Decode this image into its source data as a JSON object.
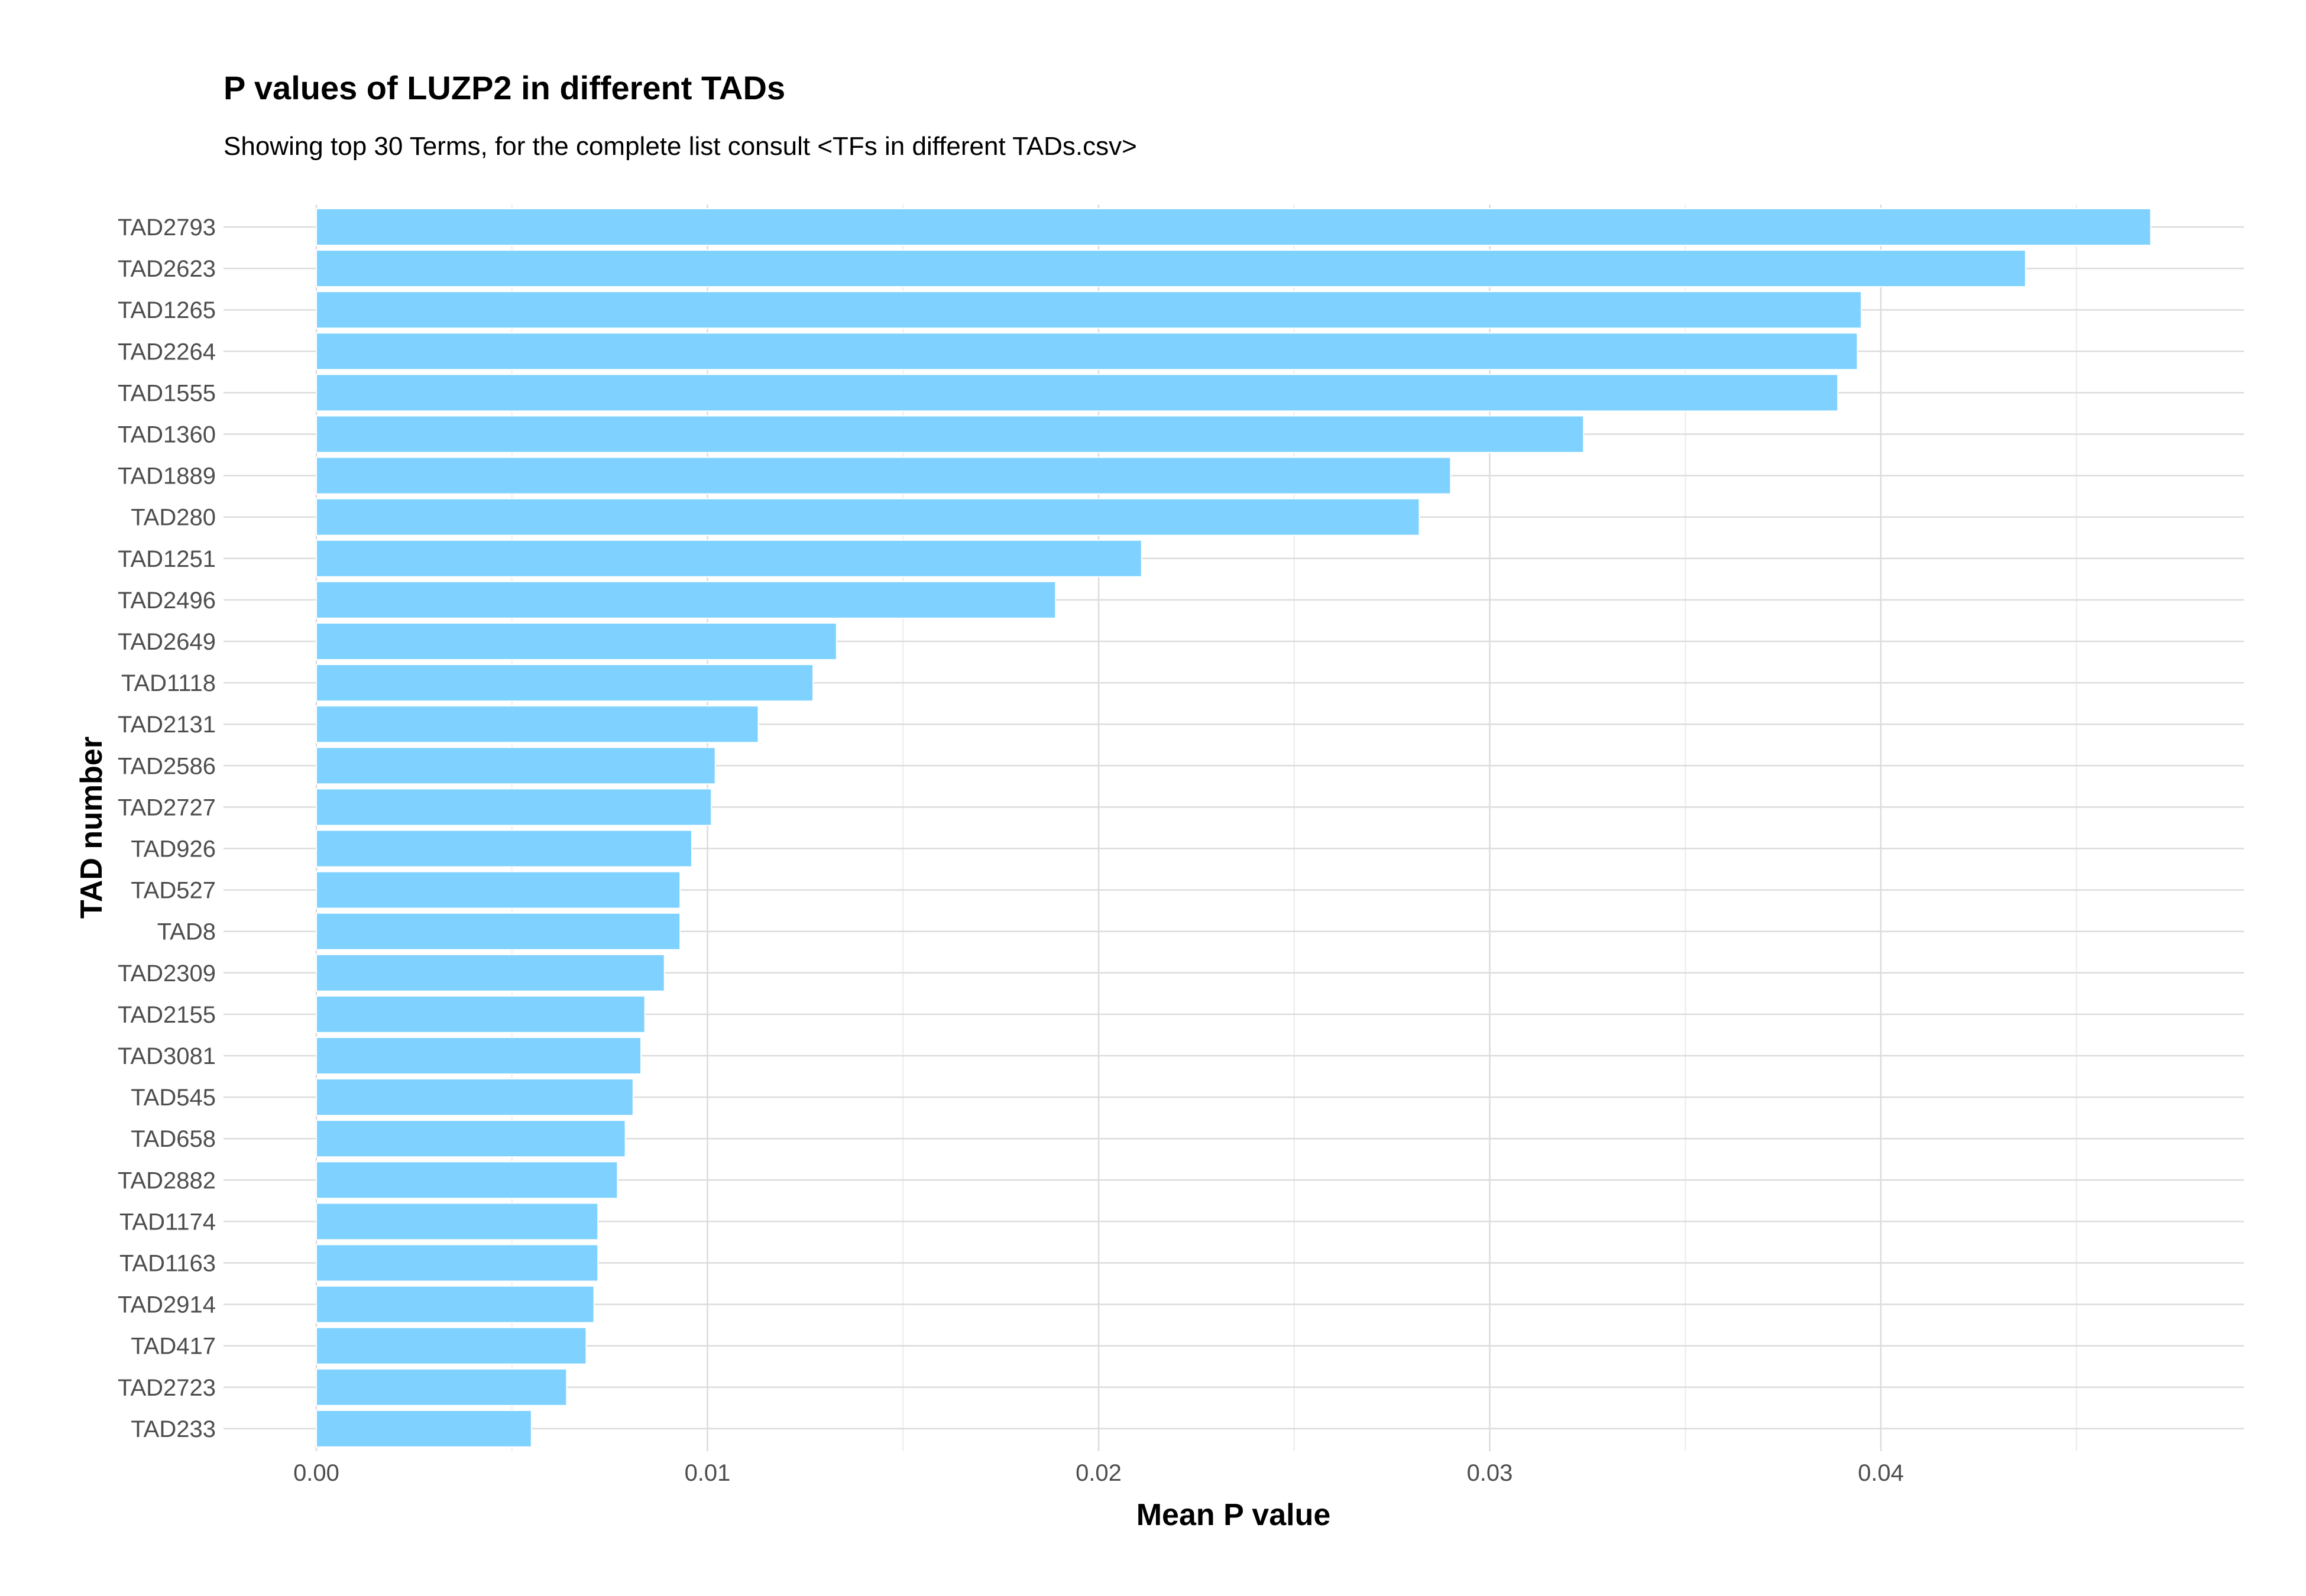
{
  "chart_data": {
    "type": "bar",
    "orientation": "horizontal",
    "title": "P values of LUZP2 in different TADs",
    "subtitle": "Showing top 30 Terms, for the complete list consult <TFs in different TADs.csv>",
    "xlabel": "Mean P value",
    "ylabel": "TAD number",
    "xlim": [
      -0.0024,
      0.0493
    ],
    "x_ticks": [
      "0.00",
      "0.01",
      "0.02",
      "0.03",
      "0.04"
    ],
    "x_tick_values": [
      0.0,
      0.01,
      0.02,
      0.03,
      0.04
    ],
    "grid": true,
    "bar_color": "#7fd2ff",
    "categories": [
      "TAD2793",
      "TAD2623",
      "TAD1265",
      "TAD2264",
      "TAD1555",
      "TAD1360",
      "TAD1889",
      "TAD280",
      "TAD1251",
      "TAD2496",
      "TAD2649",
      "TAD1118",
      "TAD2131",
      "TAD2586",
      "TAD2727",
      "TAD926",
      "TAD527",
      "TAD8",
      "TAD2309",
      "TAD2155",
      "TAD3081",
      "TAD545",
      "TAD658",
      "TAD2882",
      "TAD1174",
      "TAD1163",
      "TAD2914",
      "TAD417",
      "TAD2723",
      "TAD233"
    ],
    "values": [
      0.0469,
      0.0437,
      0.0395,
      0.0394,
      0.0389,
      0.0324,
      0.029,
      0.0282,
      0.0211,
      0.0189,
      0.0133,
      0.0127,
      0.0113,
      0.0102,
      0.0101,
      0.0096,
      0.0093,
      0.0093,
      0.0089,
      0.0084,
      0.0083,
      0.0081,
      0.0079,
      0.0077,
      0.0072,
      0.0072,
      0.0071,
      0.0069,
      0.0064,
      0.0055
    ]
  }
}
